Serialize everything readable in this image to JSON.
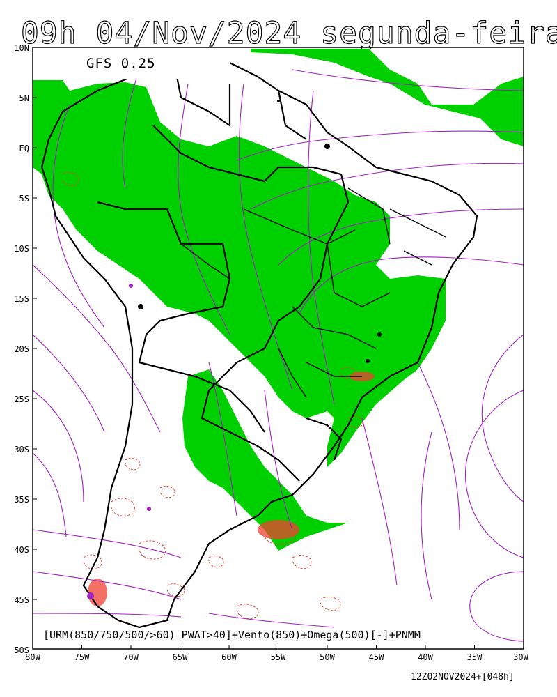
{
  "title": "09h 04/Nov/2024 segunda-feira",
  "model_label": "GFS 0.25",
  "legend": "[URM(850/750/500/>60)_PWAT>40]+Vento(850)+Omega(500)[-]+PNMM",
  "run_info": "12Z02NOV2024+[048h]",
  "axes": {
    "lat_labels": [
      "10N",
      "5N",
      "EQ",
      "5S",
      "10S",
      "15S",
      "20S",
      "25S",
      "30S",
      "35S",
      "40S",
      "45S",
      "50S"
    ],
    "lon_labels": [
      "80W",
      "75W",
      "70W",
      "65W",
      "60W",
      "55W",
      "50W",
      "45W",
      "40W",
      "35W",
      "30W"
    ]
  },
  "colors": {
    "humidity_fill": "#00d000",
    "omega_contour": "#f04030",
    "streamline": "#a020c0",
    "borders": "#000000"
  }
}
